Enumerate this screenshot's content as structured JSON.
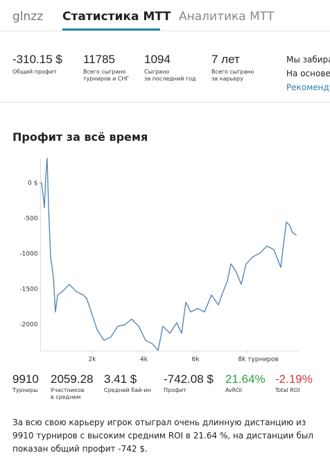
{
  "nav": {
    "user": "glnzz",
    "tabs": [
      "Статистика МТТ",
      "Аналитика МТТ"
    ]
  },
  "stats": [
    {
      "value": "-310.15 $",
      "label": [
        "Общий профит"
      ]
    },
    {
      "value": "11785",
      "label": [
        "Всего сыграно",
        "турниров и СНГ"
      ]
    },
    {
      "value": "1094",
      "label": [
        "Сыграно",
        "за последний год"
      ]
    },
    {
      "value": "7 лет",
      "label": [
        "Всего сыграно",
        "за карьеру"
      ]
    }
  ],
  "notice": {
    "lines": [
      "Мы забира",
      "На основе"
    ],
    "link": "Рекоменду"
  },
  "chart_data": {
    "type": "line",
    "title": "Профит за всё время",
    "x": [
      0,
      40,
      94,
      148,
      201,
      255,
      310,
      390,
      497,
      577,
      658,
      846,
      1114,
      1383,
      1651,
      1785,
      1919,
      2188,
      2456,
      2725,
      2993,
      3262,
      3530,
      3799,
      4067,
      4336,
      4550,
      4738,
      5007,
      5275,
      5463,
      5624,
      5812,
      6081,
      6349,
      6617,
      6886,
      7020,
      7235,
      7369,
      7557,
      7772,
      7960,
      8228,
      8497,
      8765,
      9034,
      9302,
      9383,
      9517,
      9651,
      9758,
      9910
    ],
    "series": [
      {
        "name": "Профит",
        "color": "#4a7fb5",
        "values": [
          0,
          0,
          -160,
          -350,
          90,
          350,
          -350,
          -1040,
          -1330,
          -1820,
          -1580,
          -1530,
          -1430,
          -1530,
          -1580,
          -1630,
          -1770,
          -2070,
          -2220,
          -2170,
          -2020,
          -2000,
          -1920,
          -2020,
          -2220,
          -2270,
          -2360,
          -2020,
          -2120,
          -1970,
          -2120,
          -1680,
          -1820,
          -1770,
          -1820,
          -1580,
          -1720,
          -1580,
          -1380,
          -1140,
          -1240,
          -1430,
          -1140,
          -1040,
          -990,
          -890,
          -940,
          -1190,
          -940,
          -550,
          -600,
          -700,
          -740
        ]
      }
    ],
    "xlim": [
      0,
      10000
    ],
    "ylim": [
      -2370,
      350
    ],
    "xticks": [
      {
        "value": 2000,
        "label": "2k"
      },
      {
        "value": 4000,
        "label": "4k"
      },
      {
        "value": 6000,
        "label": "6k"
      },
      {
        "value": 8000,
        "label": "8k турниров"
      }
    ],
    "yticks": [
      {
        "value": 0,
        "label": "0 $"
      },
      -500,
      -1000,
      -1500,
      -2000
    ],
    "grid": false
  },
  "summary": [
    {
      "value": "9910",
      "label": [
        "Турниры"
      ]
    },
    {
      "value": "2059.28",
      "label": [
        "Участников",
        "в среднем"
      ]
    },
    {
      "value": "3.41 $",
      "label": [
        "Средний бай-ин"
      ]
    },
    {
      "value": "-742.08 $",
      "label": [
        "Профит"
      ]
    },
    {
      "value": "21.64%",
      "label": [
        "AvROI"
      ],
      "color": "#2e9e3e"
    },
    {
      "value": "-2.19%",
      "label": [
        "Total ROI"
      ],
      "color": "#d9363e"
    }
  ],
  "description": "За всю свою карьеру игрок отыграл очень длинную дистанцию из 9910 турниров с высоким средним ROI в 21.64 %, на дистанции был показан общий профит -742 $."
}
